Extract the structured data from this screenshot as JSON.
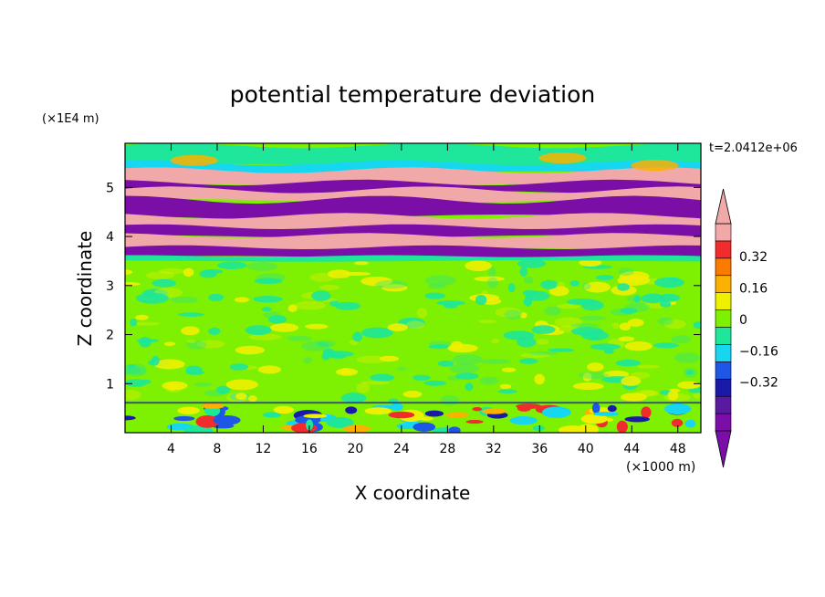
{
  "chart_data": {
    "type": "heatmap",
    "title": "potential temperature deviation",
    "xlabel": "X coordinate",
    "ylabel": "Z coordinate",
    "x_unit": "(×1000 m)",
    "y_unit": "(×1E4 m)",
    "time_label": "t=2.0412e+06",
    "xlim": [
      0,
      50
    ],
    "ylim": [
      0,
      5.9
    ],
    "x_ticks": [
      4,
      8,
      12,
      16,
      20,
      24,
      28,
      32,
      36,
      40,
      44,
      48
    ],
    "y_ticks": [
      1,
      2,
      3,
      4,
      5
    ],
    "colorbar": {
      "levels": [
        -0.48,
        -0.4,
        -0.32,
        -0.24,
        -0.16,
        -0.08,
        0,
        0.08,
        0.16,
        0.24,
        0.32,
        0.4
      ],
      "tick_labels": [
        {
          "value": 0.32,
          "label": "0.32"
        },
        {
          "value": 0.16,
          "label": "0.16"
        },
        {
          "value": 0,
          "label": "0"
        },
        {
          "value": -0.16,
          "label": "−0.16"
        },
        {
          "value": -0.32,
          "label": "−0.32"
        }
      ],
      "colors": [
        "#7b0ea6",
        "#5a1aa0",
        "#1a1aa8",
        "#1e56e6",
        "#17d6f0",
        "#1ee69a",
        "#7ef001",
        "#eef000",
        "#fbb100",
        "#fb7a00",
        "#f02c2c",
        "#f0a8a8"
      ],
      "extend": "both"
    },
    "bands": [
      {
        "z_min": 5.0,
        "z_max": 5.45,
        "pattern": "alternating warm/cold stripes"
      },
      {
        "z_min": 3.5,
        "z_max": 5.0,
        "pattern": "alternating warm/cold stripes"
      },
      {
        "z_min": 0.6,
        "z_max": 3.5,
        "pattern": "near-zero noise"
      },
      {
        "z_min": 0.0,
        "z_max": 0.6,
        "pattern": "surface perturbations"
      }
    ]
  }
}
